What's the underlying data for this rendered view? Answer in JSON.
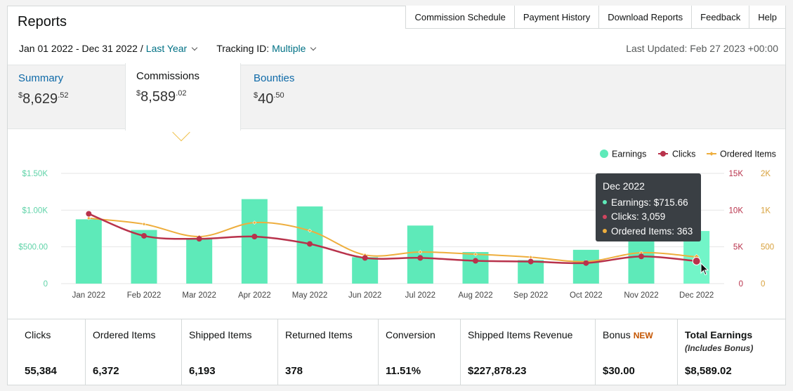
{
  "header": {
    "title": "Reports",
    "nav": [
      "Commission Schedule",
      "Payment History",
      "Download Reports",
      "Feedback",
      "Help"
    ],
    "date_range": "Jan 01 2022 - Dec 31 2022",
    "date_sep": "/",
    "date_preset": "Last Year",
    "tracking_label": "Tracking ID:",
    "tracking_value": "Multiple",
    "last_updated": "Last Updated: Feb 27 2023 +00:00"
  },
  "summary_tabs": [
    {
      "label": "Summary",
      "currency": "$",
      "whole": "8,629",
      "cents": ".52"
    },
    {
      "label": "Commissions",
      "currency": "$",
      "whole": "8,589",
      "cents": ".02"
    },
    {
      "label": "Bounties",
      "currency": "$",
      "whole": "40",
      "cents": ".50"
    }
  ],
  "legend": [
    "Earnings",
    "Clicks",
    "Ordered Items"
  ],
  "tooltip": {
    "title": "Dec 2022",
    "rows": [
      "Earnings: $715.66",
      "Clicks: 3,059",
      "Ordered Items: 363"
    ]
  },
  "chart_data": {
    "type": "bar",
    "categories": [
      "Jan 2022",
      "Feb 2022",
      "Mar 2022",
      "Apr 2022",
      "May 2022",
      "Jun 2022",
      "Jul 2022",
      "Aug 2022",
      "Sep 2022",
      "Oct 2022",
      "Nov 2022",
      "Dec 2022"
    ],
    "series": [
      {
        "name": "Earnings",
        "type": "bar",
        "axis": "left",
        "color": "#5eeab9",
        "values": [
          875,
          730,
          610,
          1150,
          1050,
          360,
          790,
          430,
          320,
          460,
          620,
          715.66
        ]
      },
      {
        "name": "Clicks",
        "type": "line",
        "axis": "right1",
        "color": "#b8324b",
        "values": [
          9500,
          6500,
          6100,
          6400,
          5400,
          3500,
          3500,
          3100,
          3000,
          2800,
          3700,
          3059
        ]
      },
      {
        "name": "Ordered Items",
        "type": "line",
        "axis": "right2",
        "color": "#eeae3d",
        "values": [
          890,
          810,
          640,
          830,
          720,
          390,
          430,
          400,
          360,
          300,
          420,
          363
        ]
      }
    ],
    "axes": {
      "left": {
        "ticks": [
          "0",
          "$500.00",
          "$1.00K",
          "$1.50K"
        ],
        "max": 1500,
        "color": "#5fd3a8"
      },
      "right1": {
        "ticks": [
          "0",
          "5K",
          "10K",
          "15K"
        ],
        "max": 15000,
        "color": "#b8324b"
      },
      "right2": {
        "ticks": [
          "0",
          "500",
          "1K",
          "2K"
        ],
        "values": [
          0,
          500,
          1000,
          1500
        ],
        "max": 1500,
        "color": "#d8a13c"
      }
    },
    "grid": true,
    "legend_position": "top-right"
  },
  "stats": [
    {
      "label": "Clicks",
      "value": "55,384"
    },
    {
      "label": "Ordered Items",
      "value": "6,372"
    },
    {
      "label": "Shipped Items",
      "value": "6,193"
    },
    {
      "label": "Returned Items",
      "value": "378"
    },
    {
      "label": "Conversion",
      "value": "11.51%"
    },
    {
      "label": "Shipped Items Revenue",
      "value": "$227,878.23"
    },
    {
      "label": "Bonus",
      "badge": "NEW",
      "value": "$30.00"
    },
    {
      "label": "Total Earnings",
      "sub": "(Includes Bonus)",
      "value": "$8,589.02"
    }
  ]
}
